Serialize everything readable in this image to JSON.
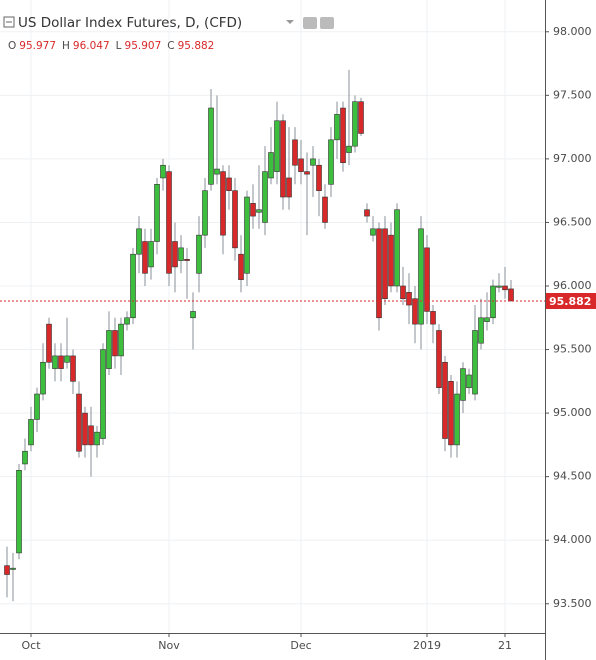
{
  "chart_data": {
    "type": "candlestick",
    "title": "US Dollar Index Futures, D, (CFD)",
    "ohlc_labels": [
      "O",
      "H",
      "L",
      "C"
    ],
    "categories": [
      null,
      null,
      null,
      null,
      "Oct",
      null,
      null,
      null,
      null,
      null,
      null,
      null,
      null,
      null,
      null,
      null,
      null,
      null,
      null,
      null,
      null,
      null,
      null,
      null,
      null,
      null,
      null,
      "Nov",
      null,
      null,
      null,
      null,
      null,
      null,
      null,
      null,
      null,
      null,
      null,
      null,
      null,
      null,
      null,
      null,
      null,
      null,
      null,
      null,
      null,
      "Dec",
      null,
      null,
      null,
      null,
      null,
      null,
      null,
      null,
      null,
      null,
      null,
      null,
      null,
      null,
      null,
      null,
      null,
      null,
      null,
      null,
      "2019",
      null,
      null,
      null,
      null,
      null,
      null,
      null,
      null,
      null,
      null,
      null,
      null,
      "21",
      null
    ],
    "open": [
      93.8,
      93.77,
      93.9,
      94.6,
      94.75,
      94.95,
      95.15,
      95.7,
      95.35,
      95.45,
      95.4,
      95.45,
      95.15,
      95.0,
      94.9,
      94.75,
      94.8,
      95.35,
      95.65,
      95.45,
      95.7,
      95.75,
      96.25,
      96.35,
      96.15,
      96.35,
      96.85,
      96.9,
      96.35,
      96.2,
      96.21,
      95.75,
      96.1,
      96.4,
      96.8,
      96.88,
      96.9,
      96.85,
      96.75,
      96.25,
      96.1,
      96.65,
      96.58,
      96.5,
      96.85,
      96.9,
      97.3,
      96.85,
      97.15,
      97.0,
      96.9,
      96.95,
      96.95,
      96.7,
      96.8,
      97.15,
      97.4,
      97.05,
      97.1,
      97.45,
      96.6,
      96.4,
      96.45,
      96.45,
      96.4,
      96.0,
      96.0,
      95.95,
      95.9,
      95.7,
      96.3,
      95.8,
      95.65,
      95.4,
      95.25,
      94.75,
      95.1,
      95.2,
      95.15,
      95.55,
      95.72,
      95.75,
      95.99,
      96.0,
      95.977
    ],
    "high": [
      93.95,
      93.9,
      94.6,
      94.8,
      95.05,
      95.2,
      95.55,
      95.75,
      95.55,
      95.55,
      95.75,
      95.5,
      95.25,
      95.05,
      95.05,
      94.9,
      95.55,
      95.8,
      95.75,
      95.75,
      95.8,
      96.3,
      96.55,
      96.45,
      96.45,
      96.85,
      97.0,
      96.95,
      96.5,
      96.4,
      96.3,
      95.95,
      96.55,
      96.85,
      97.55,
      97.5,
      96.95,
      96.95,
      96.85,
      96.4,
      96.75,
      96.8,
      96.95,
      97.1,
      97.25,
      97.45,
      97.35,
      97.25,
      97.25,
      97.15,
      97.05,
      97.1,
      97.0,
      96.8,
      97.25,
      97.45,
      97.45,
      97.7,
      97.5,
      97.48,
      96.65,
      96.55,
      96.5,
      96.55,
      96.5,
      96.65,
      96.15,
      96.1,
      96.0,
      96.55,
      96.4,
      95.85,
      95.7,
      95.45,
      95.3,
      95.25,
      95.4,
      95.35,
      95.85,
      95.9,
      95.95,
      96.05,
      96.1,
      96.15,
      96.047
    ],
    "low": [
      93.55,
      93.52,
      93.85,
      94.55,
      94.7,
      94.85,
      95.1,
      95.35,
      95.25,
      95.25,
      95.35,
      95.15,
      94.65,
      94.65,
      94.5,
      94.65,
      94.75,
      95.3,
      95.35,
      95.3,
      95.65,
      95.7,
      96.1,
      96.0,
      96.05,
      96.25,
      96.75,
      96.0,
      95.95,
      96.1,
      95.9,
      95.5,
      95.95,
      96.3,
      96.75,
      96.8,
      96.25,
      96.6,
      96.2,
      95.95,
      96.0,
      96.45,
      96.45,
      96.4,
      96.8,
      96.8,
      96.6,
      96.6,
      96.8,
      96.8,
      96.4,
      96.7,
      96.55,
      96.45,
      96.7,
      97.0,
      96.9,
      96.95,
      97.05,
      97.18,
      96.5,
      96.35,
      95.65,
      95.85,
      95.95,
      95.95,
      95.85,
      95.7,
      95.55,
      95.5,
      95.7,
      95.55,
      95.15,
      94.7,
      94.65,
      94.65,
      95.0,
      95.15,
      95.1,
      95.5,
      95.65,
      95.7,
      95.95,
      95.9,
      95.907
    ],
    "close": [
      93.73,
      93.78,
      94.55,
      94.7,
      94.95,
      95.15,
      95.4,
      95.4,
      95.45,
      95.35,
      95.45,
      95.25,
      94.7,
      94.75,
      94.75,
      94.85,
      95.5,
      95.65,
      95.45,
      95.7,
      95.75,
      96.25,
      96.45,
      96.1,
      96.35,
      96.8,
      96.95,
      96.1,
      96.15,
      96.3,
      96.2,
      95.8,
      96.4,
      96.75,
      97.4,
      96.92,
      96.4,
      96.75,
      96.3,
      96.05,
      96.7,
      96.55,
      96.6,
      96.9,
      97.05,
      97.3,
      96.7,
      96.7,
      96.95,
      96.9,
      96.88,
      97.0,
      96.75,
      96.5,
      97.15,
      97.35,
      96.97,
      97.1,
      97.45,
      97.2,
      96.55,
      96.45,
      95.75,
      95.9,
      96.0,
      96.6,
      95.9,
      95.85,
      95.7,
      96.45,
      95.8,
      95.7,
      95.2,
      94.8,
      94.75,
      95.15,
      95.35,
      95.3,
      95.65,
      95.75,
      95.75,
      96.0,
      96.0,
      95.97,
      95.882
    ],
    "up_color": "#3cbf3c",
    "down_color": "#d9282a",
    "ylim": [
      93.27,
      98.25
    ],
    "yticks": [
      {
        "value": 93.5,
        "label": "93.500"
      },
      {
        "value": 94,
        "label": "94.000"
      },
      {
        "value": 94.5,
        "label": "94.500"
      },
      {
        "value": 95,
        "label": "95.000"
      },
      {
        "value": 95.5,
        "label": "95.500"
      },
      {
        "value": 96,
        "label": "96.000"
      },
      {
        "value": 96.5,
        "label": "96.500"
      },
      {
        "value": 97,
        "label": "97.000"
      },
      {
        "value": 97.5,
        "label": "97.500"
      },
      {
        "value": 98,
        "label": "98.000"
      }
    ],
    "grid": true
  }
}
